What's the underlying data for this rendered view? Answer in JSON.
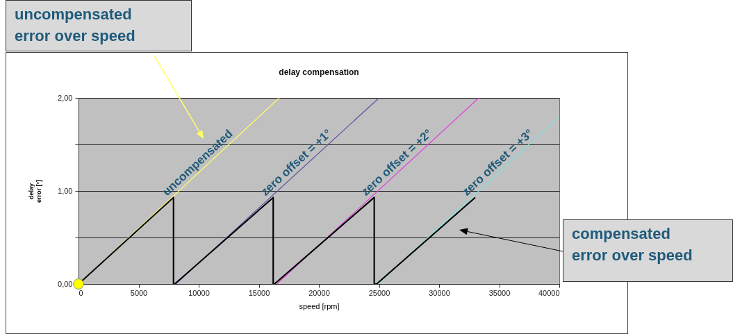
{
  "chart_data": {
    "type": "line",
    "title": "delay compensation",
    "xlabel": "speed [rpm]",
    "ylabel": "delay error [°]",
    "xlim": [
      0,
      40000
    ],
    "xticks": [
      0,
      5000,
      10000,
      15000,
      20000,
      25000,
      30000,
      35000,
      40000
    ],
    "ylim": [
      0,
      2
    ],
    "yticks": [
      {
        "value": 0,
        "label": "0,00"
      },
      {
        "value": 0.5,
        "label": null
      },
      {
        "value": 1,
        "label": "1,00"
      },
      {
        "value": 1.5,
        "label": null
      },
      {
        "value": 2,
        "label": "2,00"
      }
    ],
    "grid": "y",
    "legend": false,
    "line_style": "solid",
    "series": [
      {
        "name": "uncompensated",
        "color": "#ffff66",
        "x": [
          0,
          16700
        ],
        "values": [
          0,
          2
        ]
      },
      {
        "name": "zero offset =  +1°",
        "color": "#5a4fa0",
        "x": [
          8100,
          25000
        ],
        "values": [
          0,
          2
        ]
      },
      {
        "name": "zero offset =  +2°",
        "color": "#e040e0",
        "x": [
          16500,
          33300
        ],
        "values": [
          0,
          2
        ]
      },
      {
        "name": "zero offset =  +3°",
        "color": "#80e0e0",
        "x": [
          24900,
          40000
        ],
        "values": [
          0,
          1.8
        ]
      },
      {
        "color": "#000000",
        "x": [
          0,
          7900,
          7900,
          8000,
          16200,
          16200,
          16300,
          24600,
          24600,
          24800,
          33000
        ],
        "values": [
          0,
          0.93,
          0,
          0,
          0.93,
          0,
          0,
          0.93,
          0,
          0,
          0.93
        ]
      },
      {
        "type": "scatter",
        "marker": "circle",
        "color": "#ffff00",
        "x": [
          0
        ],
        "values": [
          0
        ]
      }
    ],
    "annotations": [
      "uncompensated error over speed",
      "compensated error over speed"
    ]
  }
}
